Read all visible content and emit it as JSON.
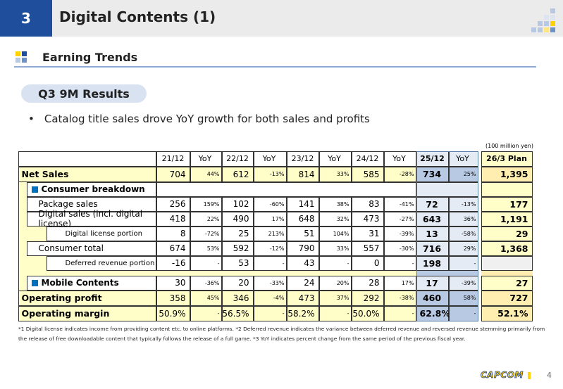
{
  "header": {
    "section_number": "3",
    "title": "Digital Contents (1)"
  },
  "subheader": "Earning Trends",
  "pill": "Q3 9M Results",
  "bullet": "Catalog title sales drove YoY growth for both sales and profits",
  "unit": "(100 million yen)",
  "table": {
    "columns": [
      "21/12",
      "YoY",
      "22/12",
      "YoY",
      "23/12",
      "YoY",
      "24/12",
      "YoY",
      "25/12",
      "YoY",
      "26/3 Plan"
    ],
    "rows": [
      {
        "label": "Net Sales",
        "values": [
          "704",
          "44%",
          "612",
          "-13%",
          "814",
          "33%",
          "585",
          "-28%",
          "734",
          "25%",
          "1,395"
        ]
      },
      {
        "label": "Consumer breakdown",
        "values": []
      },
      {
        "label": "Package sales",
        "values": [
          "256",
          "159%",
          "102",
          "-60%",
          "141",
          "38%",
          "83",
          "-41%",
          "72",
          "-13%",
          "177"
        ]
      },
      {
        "label": "Digital sales (incl. digital license)",
        "values": [
          "418",
          "22%",
          "490",
          "17%",
          "648",
          "32%",
          "473",
          "-27%",
          "643",
          "36%",
          "1,191"
        ]
      },
      {
        "label": "Digital license portion",
        "values": [
          "8",
          "-72%",
          "25",
          "213%",
          "51",
          "104%",
          "31",
          "-39%",
          "13",
          "-58%",
          "29"
        ]
      },
      {
        "label": "Consumer total",
        "values": [
          "674",
          "53%",
          "592",
          "-12%",
          "790",
          "33%",
          "557",
          "-30%",
          "716",
          "29%",
          "1,368"
        ]
      },
      {
        "label": "Deferred revenue portion",
        "values": [
          "-16",
          "-",
          "53",
          "-",
          "43",
          "-",
          "0",
          "-",
          "198",
          "-",
          ""
        ]
      },
      {
        "label": "Mobile Contents",
        "values": [
          "30",
          "-36%",
          "20",
          "-33%",
          "24",
          "20%",
          "28",
          "17%",
          "17",
          "-39%",
          "27"
        ]
      },
      {
        "label": "Operating profit",
        "values": [
          "358",
          "45%",
          "346",
          "-4%",
          "473",
          "37%",
          "292",
          "-38%",
          "460",
          "58%",
          "727"
        ]
      },
      {
        "label": "Operating margin",
        "values": [
          "50.9%",
          "-",
          "56.5%",
          "-",
          "58.2%",
          "-",
          "50.0%",
          "-",
          "62.8%",
          "-",
          "52.1%"
        ]
      }
    ]
  },
  "footnote": "*1 Digital license indicates income from providing content etc. to online platforms. *2 Deferred revenue indicates the variance between deferred revenue and reversed revenue stemming primarily from the release of free downloadable content that typically follows the release of a full game. *3 YoY indicates percent change from the same period of the previous fiscal year.",
  "logo": "CAPCOM",
  "page_number": "4",
  "colors": {
    "brand_blue": "#1f4e9c",
    "highlight_yellow": "#fffdc8",
    "highlight_blue": "#b8c9e3",
    "plan_yellow": "#ffeeb0"
  }
}
